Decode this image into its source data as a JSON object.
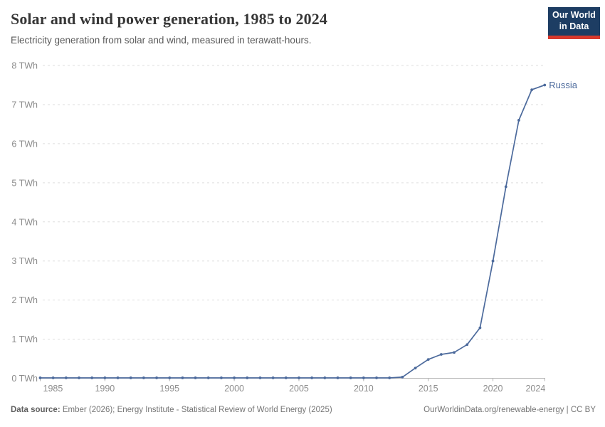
{
  "header": {
    "title": "Solar and wind power generation, 1985 to 2024",
    "subtitle": "Electricity generation from solar and wind, measured in terawatt-hours."
  },
  "logo": {
    "line1": "Our World",
    "line2": "in Data",
    "bg_color": "#1d3d63",
    "accent_color": "#d8392c"
  },
  "chart_data": {
    "type": "line",
    "title": "Solar and wind power generation, 1985 to 2024",
    "xlabel": "",
    "ylabel": "TWh",
    "xlim": [
      1985,
      2024
    ],
    "ylim": [
      0,
      8
    ],
    "grid": "dashed horizontal",
    "legend_position": "end-of-line label",
    "x": [
      1985,
      1986,
      1987,
      1988,
      1989,
      1990,
      1991,
      1992,
      1993,
      1994,
      1995,
      1996,
      1997,
      1998,
      1999,
      2000,
      2001,
      2002,
      2003,
      2004,
      2005,
      2006,
      2007,
      2008,
      2009,
      2010,
      2011,
      2012,
      2013,
      2014,
      2015,
      2016,
      2017,
      2018,
      2019,
      2020,
      2021,
      2022,
      2023,
      2024
    ],
    "series": [
      {
        "name": "Russia",
        "color": "#4C6A9C",
        "values": [
          0.01,
          0.01,
          0.01,
          0.01,
          0.01,
          0.01,
          0.01,
          0.01,
          0.01,
          0.01,
          0.01,
          0.01,
          0.01,
          0.01,
          0.01,
          0.01,
          0.01,
          0.01,
          0.01,
          0.01,
          0.01,
          0.01,
          0.01,
          0.01,
          0.01,
          0.01,
          0.01,
          0.01,
          0.03,
          0.26,
          0.48,
          0.61,
          0.66,
          0.86,
          1.29,
          3.0,
          4.9,
          6.6,
          7.38,
          7.5
        ]
      }
    ],
    "y_ticks": [
      {
        "value": 0,
        "label": "0 TWh"
      },
      {
        "value": 1,
        "label": "1 TWh"
      },
      {
        "value": 2,
        "label": "2 TWh"
      },
      {
        "value": 3,
        "label": "3 TWh"
      },
      {
        "value": 4,
        "label": "4 TWh"
      },
      {
        "value": 5,
        "label": "5 TWh"
      },
      {
        "value": 6,
        "label": "6 TWh"
      },
      {
        "value": 7,
        "label": "7 TWh"
      },
      {
        "value": 8,
        "label": "8 TWh"
      }
    ],
    "x_ticks": [
      1985,
      1990,
      1995,
      2000,
      2005,
      2010,
      2015,
      2020,
      2024
    ]
  },
  "footer": {
    "data_source_label": "Data source:",
    "data_source_text": " Ember (2026); Energy Institute - Statistical Review of World Energy (2025)",
    "attribution": "OurWorldinData.org/renewable-energy | CC BY"
  }
}
